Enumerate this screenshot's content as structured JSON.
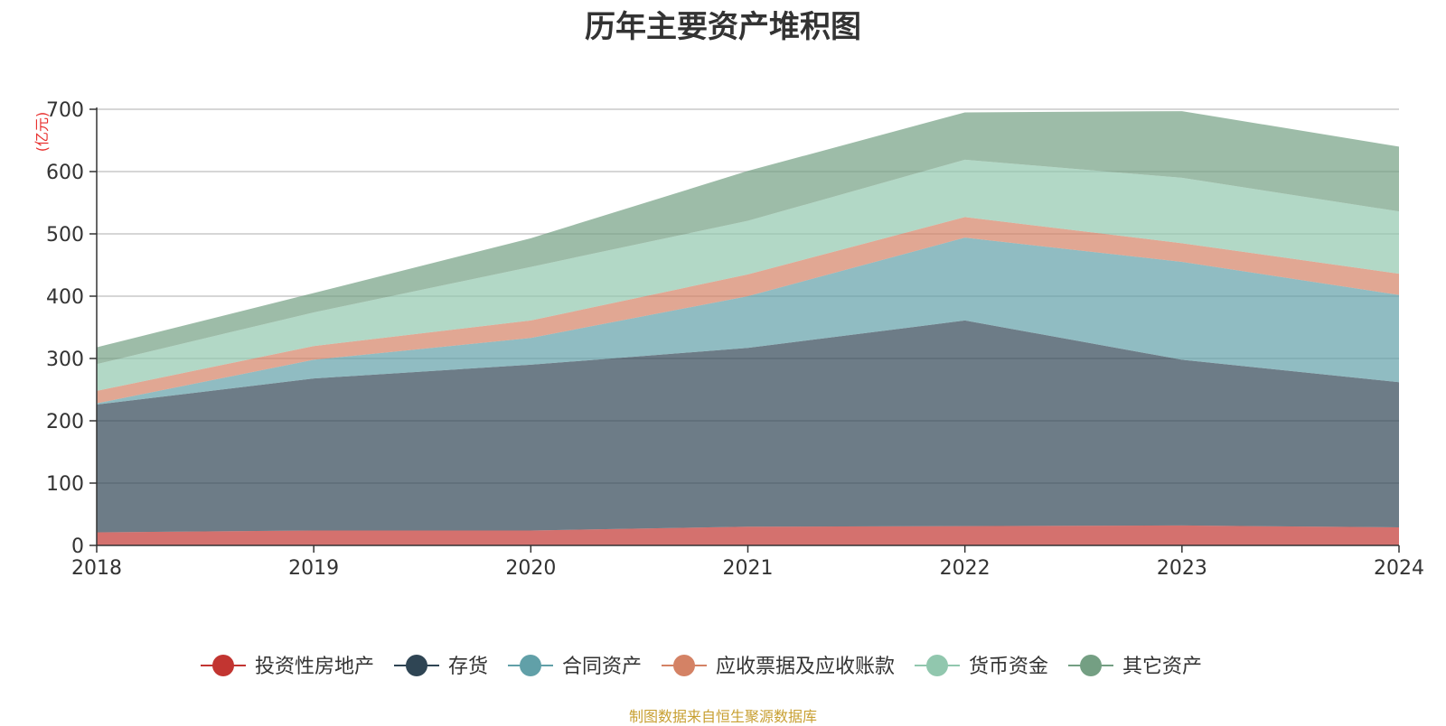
{
  "chart_data": {
    "type": "area",
    "stacked": true,
    "title": "历年主要资产堆积图",
    "unit_label": "(亿元)",
    "xlabel": "",
    "ylabel": "",
    "categories": [
      "2018",
      "2019",
      "2020",
      "2021",
      "2022",
      "2023",
      "2024"
    ],
    "ylim": [
      0,
      700
    ],
    "yticks": [
      0,
      100,
      200,
      300,
      400,
      500,
      600,
      700
    ],
    "grid": true,
    "legend_position": "bottom",
    "series": [
      {
        "name": "投资性房地产",
        "color": "#c23531",
        "values": [
          21,
          24,
          24,
          30,
          31,
          32,
          29
        ]
      },
      {
        "name": "存货",
        "color": "#2f4554",
        "values": [
          205,
          244,
          266,
          287,
          330,
          266,
          233
        ]
      },
      {
        "name": "合同资产",
        "color": "#61a0a8",
        "values": [
          2,
          30,
          43,
          83,
          133,
          157,
          140
        ]
      },
      {
        "name": "应收票据及应收账款",
        "color": "#d48265",
        "values": [
          20,
          22,
          28,
          35,
          33,
          30,
          34
        ]
      },
      {
        "name": "货币资金",
        "color": "#91c7ae",
        "values": [
          43,
          54,
          86,
          86,
          92,
          105,
          100
        ]
      },
      {
        "name": "其它资产",
        "color": "#749f83",
        "values": [
          27,
          31,
          46,
          80,
          76,
          107,
          104
        ]
      }
    ]
  },
  "footer": {
    "source": "制图数据来自恒生聚源数据库"
  }
}
